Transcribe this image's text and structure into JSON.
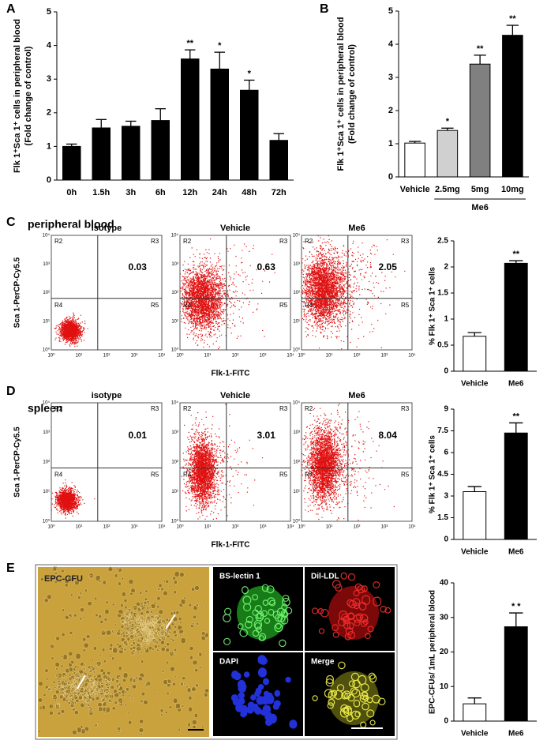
{
  "panel_labels": [
    "A",
    "B",
    "C",
    "D",
    "E"
  ],
  "chart_data": [
    {
      "type": "bar",
      "categories": [
        "0h",
        "1.5h",
        "3h",
        "6h",
        "12h",
        "24h",
        "48h",
        "72h"
      ],
      "values": [
        1,
        1.55,
        1.6,
        1.77,
        3.6,
        3.3,
        2.67,
        1.18
      ],
      "errors": [
        0.07,
        0.25,
        0.15,
        0.35,
        0.27,
        0.5,
        0.3,
        0.2
      ],
      "color": "#000000",
      "y_label": [
        "Flk 1⁺Sca 1⁺ cells in peripheral blood",
        "(Fold change of control)"
      ],
      "ylim": [
        0,
        5
      ],
      "yticks": [
        0,
        1,
        2,
        3,
        4,
        5
      ],
      "annotations": [
        {
          "index": 4,
          "text": "**"
        },
        {
          "index": 5,
          "text": "*"
        },
        {
          "index": 6,
          "text": "*"
        }
      ]
    },
    {
      "type": "bar",
      "categories": [
        "Vehicle",
        "2.5mg",
        "5mg",
        "10mg"
      ],
      "values": [
        1.02,
        1.4,
        3.4,
        4.27
      ],
      "errors": [
        0.05,
        0.07,
        0.27,
        0.3
      ],
      "colors": [
        "#ffffff",
        "#d0d0d0",
        "#808080",
        "#000000"
      ],
      "y_label": [
        "Flk 1⁺Sca 1⁺ cells in peripheral blood",
        "(Fold change of  control)"
      ],
      "ylim": [
        0,
        5
      ],
      "yticks": [
        0,
        1,
        2,
        3,
        4,
        5
      ],
      "group": {
        "label": "Me6",
        "from": 1,
        "to": 3
      },
      "annotations": [
        {
          "index": 1,
          "text": "*"
        },
        {
          "index": 2,
          "text": "**"
        },
        {
          "index": 3,
          "text": "**"
        }
      ]
    },
    {
      "type": "bar",
      "categories": [
        "Vehicle",
        "Me6"
      ],
      "values": [
        0.67,
        2.07
      ],
      "errors": [
        0.07,
        0.05
      ],
      "colors": [
        "#ffffff",
        "#000000"
      ],
      "y_label": [
        "% Flk 1⁺ Sca 1⁺ cells"
      ],
      "ylim": [
        0,
        2.5
      ],
      "yticks": [
        0,
        0.5,
        1,
        1.5,
        2,
        2.5
      ],
      "annotations": [
        {
          "index": 1,
          "text": "**"
        }
      ]
    },
    {
      "type": "bar",
      "categories": [
        "Vehicle",
        "Me6"
      ],
      "values": [
        3.3,
        7.35
      ],
      "errors": [
        0.35,
        0.7
      ],
      "colors": [
        "#ffffff",
        "#000000"
      ],
      "y_label": [
        "% Flk 1⁺ Sca 1⁺ cells"
      ],
      "ylim": [
        0,
        9
      ],
      "yticks": [
        0,
        1.5,
        3,
        4.5,
        6,
        7.5,
        9
      ],
      "annotations": [
        {
          "index": 1,
          "text": "**"
        }
      ]
    },
    {
      "type": "bar",
      "categories": [
        "Vehicle",
        "Me6"
      ],
      "values": [
        5,
        27.3
      ],
      "errors": [
        1.7,
        4
      ],
      "colors": [
        "#ffffff",
        "#000000"
      ],
      "y_label": [
        "EPC-CFUs/ 1mL peripheral blood"
      ],
      "ylim": [
        0,
        40
      ],
      "yticks": [
        0,
        10,
        20,
        30,
        40
      ],
      "annotations": [
        {
          "index": 1,
          "text": "* *"
        }
      ]
    }
  ],
  "flow": [
    {
      "title": "peripheral blood",
      "y_label": "Sca 1-PerCP-Cy5.5",
      "x_label": "Flk-1-FITC",
      "plots": [
        {
          "name": "isotype",
          "value": 0.03
        },
        {
          "name": "Vehicle",
          "value": 0.63
        },
        {
          "name": "Me6",
          "value": 2.05
        }
      ]
    },
    {
      "title": "spleen",
      "y_label": "Sca 1-PerCP-Cy5.5",
      "x_label": "Flk-1-FITC",
      "plots": [
        {
          "name": "isotype",
          "value": 0.01
        },
        {
          "name": "Vehicle",
          "value": 3.01
        },
        {
          "name": "Me6",
          "value": 8.04
        }
      ]
    }
  ],
  "flow_axis_ticks": [
    "10⁰",
    "10¹",
    "10²",
    "10³",
    "10⁴"
  ],
  "quadrants": [
    "R2",
    "R3",
    "R4",
    "R5"
  ],
  "micrographs": {
    "bright_field": "EPC-CFU",
    "fluorescence": [
      "BS-lectin 1",
      "Dil-LDL",
      "DAPI",
      "Merge"
    ]
  }
}
